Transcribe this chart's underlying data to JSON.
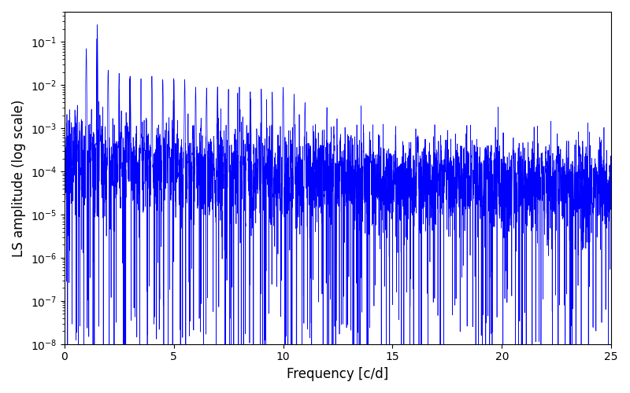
{
  "xlabel": "Frequency [c/d]",
  "ylabel": "LS amplitude (log scale)",
  "xlim": [
    0,
    25
  ],
  "ylim": [
    1e-08,
    0.5
  ],
  "line_color": "#0000ff",
  "linewidth": 0.5,
  "freq_min": 0.0,
  "freq_max": 25.0,
  "n_points": 5000,
  "seed": 7,
  "background_color": "#ffffff",
  "figsize": [
    8.0,
    5.0
  ],
  "dpi": 100
}
